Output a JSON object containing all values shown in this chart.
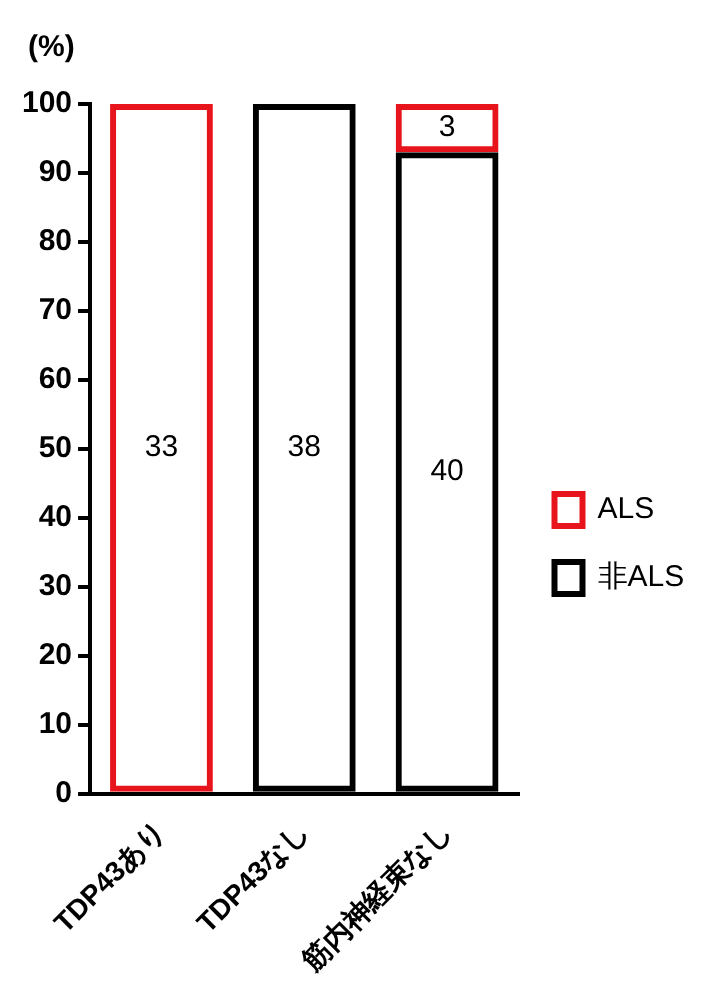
{
  "chart_data": {
    "type": "bar",
    "ylabel": "(%)",
    "categories": [
      "TDP43あり",
      "TDP43なし",
      "筋内神経束なし"
    ],
    "stacked": true,
    "series": [
      {
        "name": "非ALS",
        "color": "#000000",
        "values": [
          null,
          100,
          93
        ]
      },
      {
        "name": "ALS",
        "color": "#e8141c",
        "values": [
          100,
          null,
          7
        ]
      }
    ],
    "annotations": [
      "33",
      "38",
      "40",
      "3"
    ],
    "ylim": [
      0,
      100
    ],
    "yticks": [
      0,
      10,
      20,
      30,
      40,
      50,
      60,
      70,
      80,
      90,
      100
    ],
    "grid": false,
    "legend": "right"
  }
}
